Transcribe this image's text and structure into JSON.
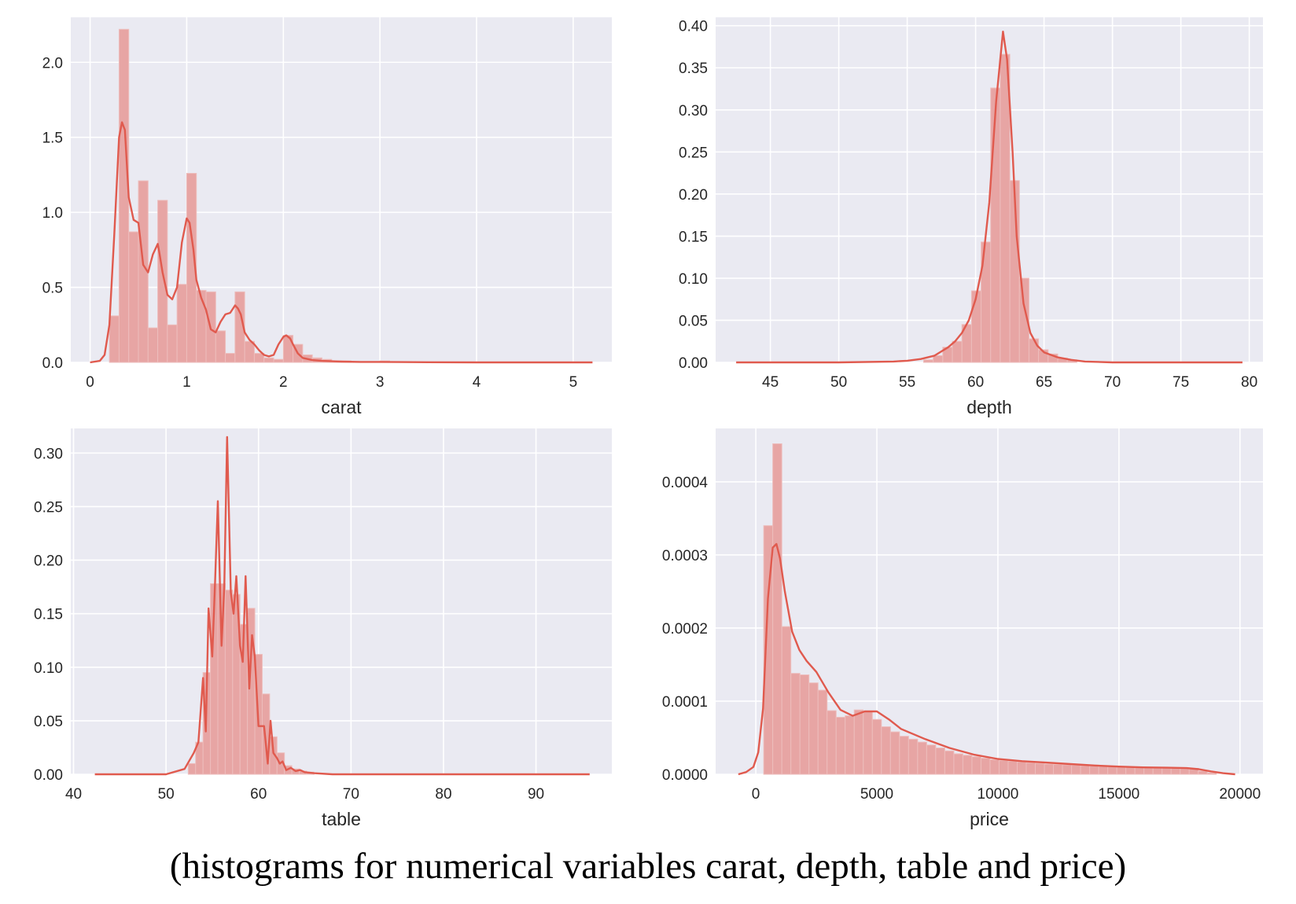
{
  "figure_caption": "(histograms for numerical variables carat, depth, table and price)",
  "colors": {
    "bar": "#E7A5A4",
    "bar_edge": "#EDBDBC",
    "kde": "#E05A4E",
    "plot_bg": "#EAEAF2",
    "grid": "#FFFFFF",
    "text": "#262626"
  },
  "chart_data": [
    {
      "type": "bar",
      "subtype": "histogram_with_kde",
      "title": "",
      "xlabel": "carat",
      "ylabel": "",
      "xlim": [
        -0.2,
        5.4
      ],
      "ylim": [
        0,
        2.3
      ],
      "xticks": [
        0,
        1,
        2,
        3,
        4,
        5
      ],
      "xtick_labels": [
        "0",
        "1",
        "2",
        "3",
        "4",
        "5"
      ],
      "yticks": [
        0.0,
        0.5,
        1.0,
        1.5,
        2.0
      ],
      "ytick_labels": [
        "0.0",
        "0.5",
        "1.0",
        "1.5",
        "2.0"
      ],
      "grid": true,
      "bins": [
        {
          "x0": 0.2,
          "x1": 0.3,
          "y": 0.31
        },
        {
          "x0": 0.3,
          "x1": 0.4,
          "y": 2.22
        },
        {
          "x0": 0.4,
          "x1": 0.5,
          "y": 0.87
        },
        {
          "x0": 0.5,
          "x1": 0.6,
          "y": 1.21
        },
        {
          "x0": 0.6,
          "x1": 0.7,
          "y": 0.23
        },
        {
          "x0": 0.7,
          "x1": 0.8,
          "y": 1.08
        },
        {
          "x0": 0.8,
          "x1": 0.9,
          "y": 0.25
        },
        {
          "x0": 0.9,
          "x1": 1.0,
          "y": 0.52
        },
        {
          "x0": 1.0,
          "x1": 1.1,
          "y": 1.26
        },
        {
          "x0": 1.1,
          "x1": 1.2,
          "y": 0.48
        },
        {
          "x0": 1.2,
          "x1": 1.3,
          "y": 0.47
        },
        {
          "x0": 1.3,
          "x1": 1.4,
          "y": 0.21
        },
        {
          "x0": 1.4,
          "x1": 1.5,
          "y": 0.06
        },
        {
          "x0": 1.5,
          "x1": 1.6,
          "y": 0.47
        },
        {
          "x0": 1.6,
          "x1": 1.7,
          "y": 0.14
        },
        {
          "x0": 1.7,
          "x1": 1.8,
          "y": 0.06
        },
        {
          "x0": 1.8,
          "x1": 1.9,
          "y": 0.03
        },
        {
          "x0": 1.9,
          "x1": 2.0,
          "y": 0.02
        },
        {
          "x0": 2.0,
          "x1": 2.1,
          "y": 0.18
        },
        {
          "x0": 2.1,
          "x1": 2.2,
          "y": 0.12
        },
        {
          "x0": 2.2,
          "x1": 2.3,
          "y": 0.05
        },
        {
          "x0": 2.3,
          "x1": 2.4,
          "y": 0.03
        },
        {
          "x0": 2.4,
          "x1": 2.5,
          "y": 0.02
        },
        {
          "x0": 2.5,
          "x1": 2.6,
          "y": 0.01
        },
        {
          "x0": 2.6,
          "x1": 2.7,
          "y": 0.01
        },
        {
          "x0": 3.0,
          "x1": 3.1,
          "y": 0.01
        }
      ],
      "kde": {
        "x": [
          0,
          0.1,
          0.15,
          0.2,
          0.25,
          0.3,
          0.33,
          0.36,
          0.4,
          0.45,
          0.5,
          0.55,
          0.6,
          0.65,
          0.7,
          0.72,
          0.75,
          0.8,
          0.85,
          0.9,
          0.95,
          1.0,
          1.03,
          1.07,
          1.1,
          1.15,
          1.2,
          1.25,
          1.3,
          1.35,
          1.4,
          1.45,
          1.5,
          1.53,
          1.56,
          1.6,
          1.65,
          1.7,
          1.75,
          1.8,
          1.85,
          1.9,
          1.95,
          2.0,
          2.03,
          2.07,
          2.1,
          2.15,
          2.2,
          2.3,
          2.4,
          2.6,
          2.8,
          3.0,
          3.5,
          4.0,
          4.5,
          5.2
        ],
        "y": [
          0.0,
          0.01,
          0.05,
          0.25,
          0.85,
          1.5,
          1.6,
          1.55,
          1.1,
          0.95,
          0.93,
          0.65,
          0.6,
          0.72,
          0.79,
          0.72,
          0.6,
          0.45,
          0.42,
          0.5,
          0.8,
          0.96,
          0.93,
          0.75,
          0.55,
          0.43,
          0.35,
          0.22,
          0.2,
          0.27,
          0.32,
          0.33,
          0.38,
          0.36,
          0.32,
          0.2,
          0.15,
          0.12,
          0.08,
          0.05,
          0.04,
          0.05,
          0.12,
          0.17,
          0.18,
          0.16,
          0.12,
          0.06,
          0.03,
          0.015,
          0.01,
          0.005,
          0.003,
          0.003,
          0.001,
          0.0,
          0.0,
          0.0
        ]
      }
    },
    {
      "type": "bar",
      "subtype": "histogram_with_kde",
      "title": "",
      "xlabel": "depth",
      "ylabel": "",
      "xlim": [
        41.0,
        81.0
      ],
      "ylim": [
        0,
        0.41
      ],
      "xticks": [
        45,
        50,
        55,
        60,
        65,
        70,
        75,
        80
      ],
      "xtick_labels": [
        "45",
        "50",
        "55",
        "60",
        "65",
        "70",
        "75",
        "80"
      ],
      "yticks": [
        0.0,
        0.05,
        0.1,
        0.15,
        0.2,
        0.25,
        0.3,
        0.35,
        0.4
      ],
      "ytick_labels": [
        "0.00",
        "0.05",
        "0.10",
        "0.15",
        "0.20",
        "0.25",
        "0.30",
        "0.35",
        "0.40"
      ],
      "grid": true,
      "bins": [
        {
          "x0": 56.2,
          "x1": 56.9,
          "y": 0.003
        },
        {
          "x0": 56.9,
          "x1": 57.6,
          "y": 0.008
        },
        {
          "x0": 57.6,
          "x1": 58.3,
          "y": 0.018
        },
        {
          "x0": 58.3,
          "x1": 59.0,
          "y": 0.025
        },
        {
          "x0": 59.0,
          "x1": 59.7,
          "y": 0.045
        },
        {
          "x0": 59.7,
          "x1": 60.4,
          "y": 0.085
        },
        {
          "x0": 60.4,
          "x1": 61.1,
          "y": 0.143
        },
        {
          "x0": 61.1,
          "x1": 61.8,
          "y": 0.326
        },
        {
          "x0": 61.8,
          "x1": 62.5,
          "y": 0.366
        },
        {
          "x0": 62.5,
          "x1": 63.2,
          "y": 0.216
        },
        {
          "x0": 63.2,
          "x1": 63.9,
          "y": 0.1
        },
        {
          "x0": 63.9,
          "x1": 64.6,
          "y": 0.028
        },
        {
          "x0": 64.6,
          "x1": 65.3,
          "y": 0.015
        },
        {
          "x0": 65.3,
          "x1": 66.0,
          "y": 0.01
        },
        {
          "x0": 66.0,
          "x1": 66.7,
          "y": 0.005
        },
        {
          "x0": 66.7,
          "x1": 67.4,
          "y": 0.003
        }
      ],
      "kde": {
        "x": [
          42.5,
          50,
          54,
          55,
          56,
          57,
          58,
          58.5,
          59,
          59.5,
          60,
          60.5,
          61,
          61.5,
          62,
          62.3,
          62.7,
          63,
          63.5,
          64,
          64.5,
          65,
          66,
          67,
          68,
          70,
          75,
          79.5
        ],
        "y": [
          0.0,
          0.0,
          0.001,
          0.002,
          0.004,
          0.008,
          0.018,
          0.025,
          0.035,
          0.05,
          0.075,
          0.115,
          0.19,
          0.31,
          0.393,
          0.36,
          0.25,
          0.15,
          0.07,
          0.035,
          0.02,
          0.012,
          0.006,
          0.003,
          0.001,
          0.0,
          0.0,
          0.0
        ]
      }
    },
    {
      "type": "bar",
      "subtype": "histogram_with_kde",
      "title": "",
      "xlabel": "table",
      "ylabel": "",
      "xlim": [
        39.7,
        98.2
      ],
      "ylim": [
        0,
        0.323
      ],
      "xticks": [
        40,
        50,
        60,
        70,
        80,
        90
      ],
      "xtick_labels": [
        "40",
        "50",
        "60",
        "70",
        "80",
        "90"
      ],
      "yticks": [
        0.0,
        0.05,
        0.1,
        0.15,
        0.2,
        0.25,
        0.3
      ],
      "ytick_labels": [
        "0.00",
        "0.05",
        "0.10",
        "0.15",
        "0.20",
        "0.25",
        "0.30"
      ],
      "grid": true,
      "bins": [
        {
          "x0": 52.4,
          "x1": 53.2,
          "y": 0.01
        },
        {
          "x0": 53.2,
          "x1": 54.0,
          "y": 0.03
        },
        {
          "x0": 54.0,
          "x1": 54.8,
          "y": 0.095
        },
        {
          "x0": 54.8,
          "x1": 55.6,
          "y": 0.178
        },
        {
          "x0": 55.6,
          "x1": 56.4,
          "y": 0.178
        },
        {
          "x0": 56.4,
          "x1": 57.2,
          "y": 0.172
        },
        {
          "x0": 57.2,
          "x1": 58.0,
          "y": 0.168
        },
        {
          "x0": 58.0,
          "x1": 58.8,
          "y": 0.14
        },
        {
          "x0": 58.8,
          "x1": 59.6,
          "y": 0.155
        },
        {
          "x0": 59.6,
          "x1": 60.4,
          "y": 0.112
        },
        {
          "x0": 60.4,
          "x1": 61.2,
          "y": 0.075
        },
        {
          "x0": 61.2,
          "x1": 62.0,
          "y": 0.035
        },
        {
          "x0": 62.0,
          "x1": 62.8,
          "y": 0.02
        },
        {
          "x0": 62.8,
          "x1": 63.6,
          "y": 0.008
        },
        {
          "x0": 63.6,
          "x1": 64.4,
          "y": 0.005
        },
        {
          "x0": 64.4,
          "x1": 65.2,
          "y": 0.003
        },
        {
          "x0": 65.2,
          "x1": 66.0,
          "y": 0.002
        }
      ],
      "kde": {
        "x": [
          42.3,
          50,
          52,
          53,
          53.5,
          54,
          54.3,
          54.6,
          55,
          55.3,
          55.6,
          56,
          56.3,
          56.6,
          57,
          57.3,
          57.6,
          58,
          58.3,
          58.6,
          59,
          59.3,
          59.6,
          60,
          60.3,
          60.6,
          61,
          61.3,
          61.6,
          62,
          62.3,
          62.6,
          63,
          63.5,
          64,
          64.5,
          65,
          66,
          68,
          70,
          80,
          95.8
        ],
        "y": [
          0.0,
          0.0,
          0.005,
          0.02,
          0.03,
          0.09,
          0.04,
          0.155,
          0.11,
          0.18,
          0.255,
          0.12,
          0.175,
          0.315,
          0.17,
          0.15,
          0.185,
          0.12,
          0.105,
          0.185,
          0.08,
          0.13,
          0.11,
          0.045,
          0.045,
          0.045,
          0.01,
          0.05,
          0.02,
          0.015,
          0.01,
          0.012,
          0.004,
          0.006,
          0.003,
          0.004,
          0.002,
          0.001,
          0.0,
          0.0,
          0.0,
          0.0
        ]
      }
    },
    {
      "type": "bar",
      "subtype": "histogram_with_kde",
      "title": "",
      "xlabel": "price",
      "ylabel": "",
      "xlim": [
        -1660,
        20950
      ],
      "ylim": [
        0,
        0.000473
      ],
      "xticks": [
        0,
        5000,
        10000,
        15000,
        20000
      ],
      "xtick_labels": [
        "0",
        "5000",
        "10000",
        "15000",
        "20000"
      ],
      "yticks": [
        0.0,
        0.0001,
        0.0002,
        0.0003,
        0.0004
      ],
      "ytick_labels": [
        "0.0000",
        "0.0001",
        "0.0002",
        "0.0003",
        "0.0004"
      ],
      "grid": true,
      "bins": [
        {
          "x0": 326,
          "x1": 700,
          "y": 0.00034
        },
        {
          "x0": 700,
          "x1": 1074,
          "y": 0.000452
        },
        {
          "x0": 1074,
          "x1": 1448,
          "y": 0.000202
        },
        {
          "x0": 1448,
          "x1": 1822,
          "y": 0.000138
        },
        {
          "x0": 1822,
          "x1": 2196,
          "y": 0.000136
        },
        {
          "x0": 2196,
          "x1": 2570,
          "y": 0.000125
        },
        {
          "x0": 2570,
          "x1": 2944,
          "y": 0.000115
        },
        {
          "x0": 2944,
          "x1": 3318,
          "y": 8.7e-05
        },
        {
          "x0": 3318,
          "x1": 3692,
          "y": 7.8e-05
        },
        {
          "x0": 3692,
          "x1": 4066,
          "y": 8e-05
        },
        {
          "x0": 4066,
          "x1": 4440,
          "y": 8.8e-05
        },
        {
          "x0": 4440,
          "x1": 4814,
          "y": 8.6e-05
        },
        {
          "x0": 4814,
          "x1": 5188,
          "y": 7.5e-05
        },
        {
          "x0": 5188,
          "x1": 5562,
          "y": 6.5e-05
        },
        {
          "x0": 5562,
          "x1": 5936,
          "y": 5.8e-05
        },
        {
          "x0": 5936,
          "x1": 6310,
          "y": 5.2e-05
        },
        {
          "x0": 6310,
          "x1": 6684,
          "y": 4.8e-05
        },
        {
          "x0": 6684,
          "x1": 7058,
          "y": 4.4e-05
        },
        {
          "x0": 7058,
          "x1": 7432,
          "y": 4e-05
        },
        {
          "x0": 7432,
          "x1": 7806,
          "y": 3.6e-05
        },
        {
          "x0": 7806,
          "x1": 8180,
          "y": 3.2e-05
        },
        {
          "x0": 8180,
          "x1": 8554,
          "y": 2.8e-05
        },
        {
          "x0": 8554,
          "x1": 8928,
          "y": 2.6e-05
        },
        {
          "x0": 8928,
          "x1": 9302,
          "y": 2.4e-05
        },
        {
          "x0": 9302,
          "x1": 9676,
          "y": 2.2e-05
        },
        {
          "x0": 9676,
          "x1": 10050,
          "y": 2e-05
        },
        {
          "x0": 10050,
          "x1": 10424,
          "y": 1.9e-05
        },
        {
          "x0": 10424,
          "x1": 10798,
          "y": 1.8e-05
        },
        {
          "x0": 10798,
          "x1": 11172,
          "y": 1.7e-05
        },
        {
          "x0": 11172,
          "x1": 11546,
          "y": 1.6e-05
        },
        {
          "x0": 11546,
          "x1": 11920,
          "y": 1.5e-05
        },
        {
          "x0": 11920,
          "x1": 12294,
          "y": 1.4e-05
        },
        {
          "x0": 12294,
          "x1": 12668,
          "y": 1.35e-05
        },
        {
          "x0": 12668,
          "x1": 13042,
          "y": 1.3e-05
        },
        {
          "x0": 13042,
          "x1": 13416,
          "y": 1.25e-05
        },
        {
          "x0": 13416,
          "x1": 13790,
          "y": 1.2e-05
        },
        {
          "x0": 13790,
          "x1": 14164,
          "y": 1.15e-05
        },
        {
          "x0": 14164,
          "x1": 14538,
          "y": 1.1e-05
        },
        {
          "x0": 14538,
          "x1": 14912,
          "y": 1.08e-05
        },
        {
          "x0": 14912,
          "x1": 15286,
          "y": 1.05e-05
        },
        {
          "x0": 15286,
          "x1": 15660,
          "y": 1e-05
        },
        {
          "x0": 15660,
          "x1": 16034,
          "y": 9.8e-06
        },
        {
          "x0": 16034,
          "x1": 16408,
          "y": 9.5e-06
        },
        {
          "x0": 16408,
          "x1": 16782,
          "y": 9.3e-06
        },
        {
          "x0": 16782,
          "x1": 17156,
          "y": 9e-06
        },
        {
          "x0": 17156,
          "x1": 17530,
          "y": 8.8e-06
        },
        {
          "x0": 17530,
          "x1": 17904,
          "y": 8.5e-06
        },
        {
          "x0": 17904,
          "x1": 18278,
          "y": 8e-06
        },
        {
          "x0": 18278,
          "x1": 18652,
          "y": 4.5e-06
        },
        {
          "x0": 18652,
          "x1": 19026,
          "y": 2e-06
        }
      ],
      "kde": {
        "x": [
          -720,
          -400,
          -100,
          100,
          300,
          500,
          700,
          850,
          1000,
          1200,
          1500,
          1800,
          2100,
          2500,
          3000,
          3500,
          4000,
          4500,
          5000,
          5500,
          6000,
          7000,
          8000,
          9000,
          10000,
          11000,
          12000,
          13000,
          14000,
          15000,
          16000,
          17000,
          17800,
          18300,
          18800,
          19300,
          19800
        ],
        "y": [
          0.0,
          3e-06,
          1e-05,
          3e-05,
          9e-05,
          0.00024,
          0.00031,
          0.000315,
          0.000295,
          0.00025,
          0.000195,
          0.00017,
          0.000155,
          0.00014,
          0.000112,
          8.8e-05,
          8e-05,
          8.6e-05,
          8.6e-05,
          7.5e-05,
          6.2e-05,
          4.8e-05,
          3.6e-05,
          2.7e-05,
          2.1e-05,
          1.8e-05,
          1.6e-05,
          1.4e-05,
          1.2e-05,
          1.05e-05,
          9.5e-06,
          9e-06,
          8.5e-06,
          7e-06,
          4e-06,
          1.5e-06,
          0.0
        ]
      }
    }
  ]
}
